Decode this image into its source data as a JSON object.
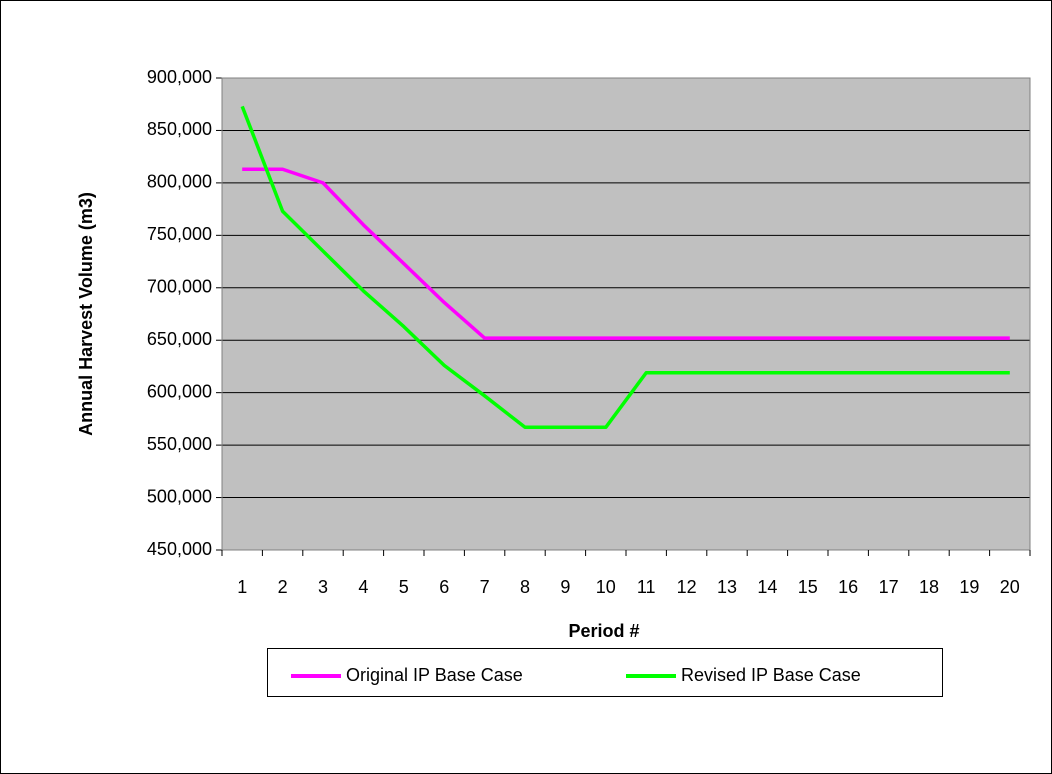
{
  "chart_data": {
    "type": "line",
    "y_label": "Annual Harvest Volume (m3)",
    "x_label": "Period #",
    "categories": [
      "1",
      "2",
      "3",
      "4",
      "5",
      "6",
      "7",
      "8",
      "9",
      "10",
      "11",
      "12",
      "13",
      "14",
      "15",
      "16",
      "17",
      "18",
      "19",
      "20"
    ],
    "series": [
      {
        "name": "Original IP Base Case",
        "color": "#ff00ff",
        "values": [
          813000,
          813000,
          800000,
          760000,
          723000,
          686000,
          652000,
          652000,
          652000,
          652000,
          652000,
          652000,
          652000,
          652000,
          652000,
          652000,
          652000,
          652000,
          652000,
          652000
        ]
      },
      {
        "name": "Revised IP Base Case",
        "color": "#00ff00",
        "values": [
          873000,
          773000,
          735000,
          697000,
          663000,
          626000,
          597000,
          567000,
          567000,
          567000,
          619000,
          619000,
          619000,
          619000,
          619000,
          619000,
          619000,
          619000,
          619000,
          619000
        ]
      }
    ],
    "ylim": [
      450000,
      900000
    ],
    "yticks": [
      {
        "value": 450000,
        "label": "450,000"
      },
      {
        "value": 500000,
        "label": "500,000"
      },
      {
        "value": 550000,
        "label": "550,000"
      },
      {
        "value": 600000,
        "label": "600,000"
      },
      {
        "value": 650000,
        "label": "650,000"
      },
      {
        "value": 700000,
        "label": "700,000"
      },
      {
        "value": 750000,
        "label": "750,000"
      },
      {
        "value": 800000,
        "label": "800,000"
      },
      {
        "value": 850000,
        "label": "850,000"
      },
      {
        "value": 900000,
        "label": "900,000"
      }
    ],
    "grid": true,
    "plot_background": "#c0c0c0",
    "legend_position": "bottom"
  }
}
